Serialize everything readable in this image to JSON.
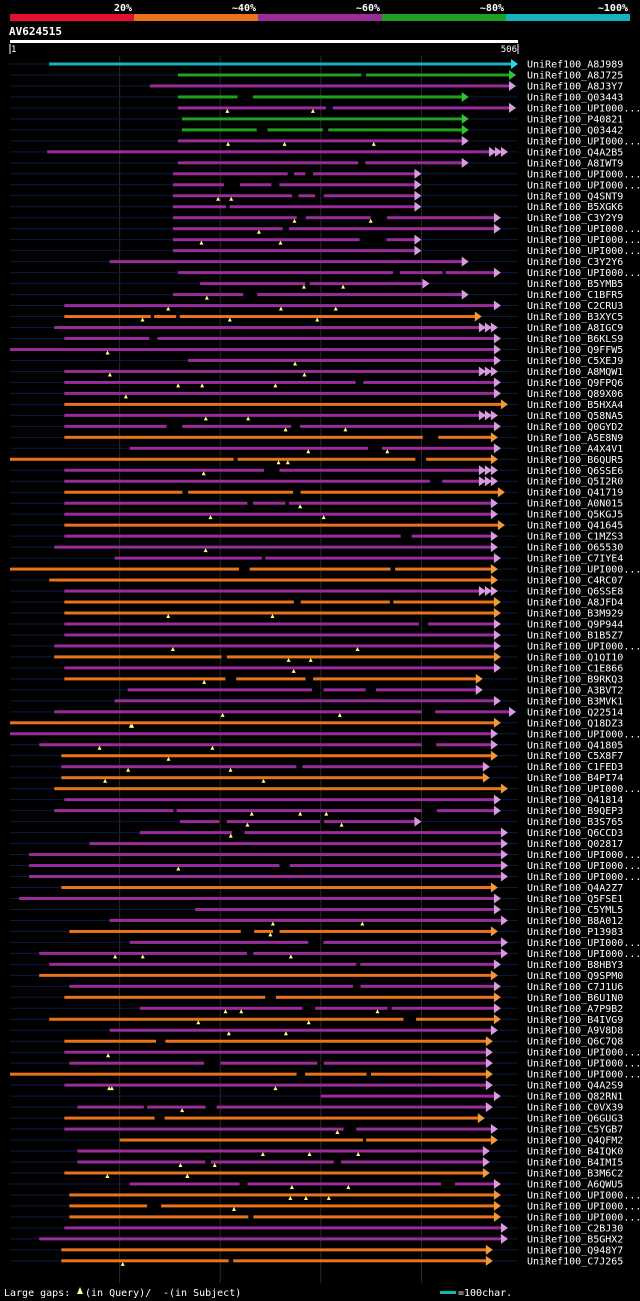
{
  "legend": {
    "segments": [
      {
        "label": "20%",
        "color": "#e0112e"
      },
      {
        "label": "~40%",
        "color": "#e8731a"
      },
      {
        "label": "~60%",
        "color": "#9a2b9a"
      },
      {
        "label": "~80%",
        "color": "#1ea11e"
      },
      {
        "label": "~100%",
        "color": "#14b3bd"
      }
    ]
  },
  "query": {
    "id": "AV624515",
    "start": "1",
    "end": "506",
    "length": 506
  },
  "footer": {
    "gaps_label": "Large gaps:",
    "in_query": "(in Query)/",
    "dash": "-",
    "in_subject": " (in Subject)",
    "scale_label": "=100char."
  },
  "hits": [
    {
      "id": "UniRef100_A8J989",
      "s": 40,
      "e": 506,
      "c": "cyan",
      "r": false
    },
    {
      "id": "UniRef100_A8J725",
      "s": 168,
      "e": 504,
      "c": "green",
      "r": false
    },
    {
      "id": "UniRef100_A8J3Y7",
      "s": 140,
      "e": 504,
      "c": "magenta",
      "r": false
    },
    {
      "id": "UniRef100_Q03443",
      "s": 168,
      "e": 457,
      "c": "green",
      "r": false
    },
    {
      "id": "UniRef100_UPI000...",
      "s": 168,
      "e": 504,
      "c": "magenta",
      "r": false
    },
    {
      "id": "UniRef100_P40821",
      "s": 172,
      "e": 457,
      "c": "green",
      "r": false
    },
    {
      "id": "UniRef100_Q03442",
      "s": 172,
      "e": 457,
      "c": "green",
      "r": false
    },
    {
      "id": "UniRef100_UPI000...",
      "s": 168,
      "e": 457,
      "c": "magenta",
      "r": false
    },
    {
      "id": "UniRef100_Q4A2B5",
      "s": 38,
      "e": 496,
      "c": "magenta",
      "r": true
    },
    {
      "id": "UniRef100_A8IWT9",
      "s": 168,
      "e": 457,
      "c": "magenta",
      "r": false
    },
    {
      "id": "UniRef100_UPI000...",
      "s": 163,
      "e": 410,
      "c": "magenta",
      "r": false
    },
    {
      "id": "UniRef100_UPI000...",
      "s": 163,
      "e": 410,
      "c": "magenta",
      "r": false
    },
    {
      "id": "UniRef100_Q4SNT9",
      "s": 163,
      "e": 410,
      "c": "magenta",
      "r": false
    },
    {
      "id": "UniRef100_B5XGK6",
      "s": 163,
      "e": 410,
      "c": "magenta",
      "r": false
    },
    {
      "id": "UniRef100_C3Y2Y9",
      "s": 163,
      "e": 489,
      "c": "magenta",
      "r": false
    },
    {
      "id": "UniRef100_UPI000...",
      "s": 163,
      "e": 489,
      "c": "magenta",
      "r": false
    },
    {
      "id": "UniRef100_UPI000...",
      "s": 163,
      "e": 410,
      "c": "magenta",
      "r": false
    },
    {
      "id": "UniRef100_UPI000...",
      "s": 163,
      "e": 410,
      "c": "magenta",
      "r": false
    },
    {
      "id": "UniRef100_C3Y2Y6",
      "s": 100,
      "e": 457,
      "c": "magenta",
      "r": false
    },
    {
      "id": "UniRef100_UPI000...",
      "s": 168,
      "e": 489,
      "c": "magenta",
      "r": false
    },
    {
      "id": "UniRef100_B5YMB5",
      "s": 190,
      "e": 418,
      "c": "magenta",
      "r": false
    },
    {
      "id": "UniRef100_C1BFR5",
      "s": 163,
      "e": 457,
      "c": "magenta",
      "r": false
    },
    {
      "id": "UniRef100_C2CRU3",
      "s": 55,
      "e": 489,
      "c": "magenta",
      "r": false
    },
    {
      "id": "UniRef100_B3XYC5",
      "s": 55,
      "e": 470,
      "c": "orange",
      "r": false
    },
    {
      "id": "UniRef100_A8IGC9",
      "s": 45,
      "e": 486,
      "c": "magenta",
      "r": true
    },
    {
      "id": "UniRef100_B6KLS9",
      "s": 55,
      "e": 489,
      "c": "magenta",
      "r": false
    },
    {
      "id": "UniRef100_Q9FFW5",
      "s": 1,
      "e": 489,
      "c": "magenta",
      "r": false
    },
    {
      "id": "UniRef100_C5XEJ9",
      "s": 178,
      "e": 489,
      "c": "magenta",
      "r": false
    },
    {
      "id": "UniRef100_A8MQW1",
      "s": 55,
      "e": 486,
      "c": "magenta",
      "r": true
    },
    {
      "id": "UniRef100_Q9FPQ6",
      "s": 55,
      "e": 489,
      "c": "magenta",
      "r": false
    },
    {
      "id": "UniRef100_Q89X06",
      "s": 55,
      "e": 489,
      "c": "magenta",
      "r": false
    },
    {
      "id": "UniRef100_B5HXA4",
      "s": 55,
      "e": 496,
      "c": "orange",
      "r": false
    },
    {
      "id": "UniRef100_Q58NA5",
      "s": 55,
      "e": 486,
      "c": "magenta",
      "r": true
    },
    {
      "id": "UniRef100_Q0GYD2",
      "s": 55,
      "e": 489,
      "c": "magenta",
      "r": false
    },
    {
      "id": "UniRef100_A5E8N9",
      "s": 55,
      "e": 486,
      "c": "orange",
      "r": false
    },
    {
      "id": "UniRef100_A4X4V1",
      "s": 120,
      "e": 489,
      "c": "magenta",
      "r": false
    },
    {
      "id": "UniRef100_B6QUR5",
      "s": 1,
      "e": 486,
      "c": "orange",
      "r": false
    },
    {
      "id": "UniRef100_Q6SSE6",
      "s": 55,
      "e": 486,
      "c": "magenta",
      "r": true
    },
    {
      "id": "UniRef100_Q5I2R0",
      "s": 55,
      "e": 486,
      "c": "magenta",
      "r": true
    },
    {
      "id": "UniRef100_Q41719",
      "s": 55,
      "e": 493,
      "c": "orange",
      "r": false
    },
    {
      "id": "UniRef100_A0N015",
      "s": 55,
      "e": 486,
      "c": "magenta",
      "r": false
    },
    {
      "id": "UniRef100_Q5KGJ5",
      "s": 55,
      "e": 486,
      "c": "magenta",
      "r": false
    },
    {
      "id": "UniRef100_Q41645",
      "s": 55,
      "e": 493,
      "c": "orange",
      "r": false
    },
    {
      "id": "UniRef100_C1MZS3",
      "s": 55,
      "e": 486,
      "c": "magenta",
      "r": false
    },
    {
      "id": "UniRef100_O65530",
      "s": 45,
      "e": 486,
      "c": "magenta",
      "r": false
    },
    {
      "id": "UniRef100_C7IYE4",
      "s": 105,
      "e": 489,
      "c": "magenta",
      "r": false
    },
    {
      "id": "UniRef100_UPI000...",
      "s": 1,
      "e": 486,
      "c": "orange",
      "r": false
    },
    {
      "id": "UniRef100_C4RC07",
      "s": 40,
      "e": 486,
      "c": "orange",
      "r": false
    },
    {
      "id": "UniRef100_Q6SSE8",
      "s": 55,
      "e": 486,
      "c": "magenta",
      "r": true
    },
    {
      "id": "UniRef100_A8JFD4",
      "s": 55,
      "e": 489,
      "c": "orange",
      "r": false
    },
    {
      "id": "UniRef100_B3M929",
      "s": 55,
      "e": 489,
      "c": "orange",
      "r": false
    },
    {
      "id": "UniRef100_Q9P944",
      "s": 55,
      "e": 489,
      "c": "magenta",
      "r": false
    },
    {
      "id": "UniRef100_B1B5Z7",
      "s": 55,
      "e": 489,
      "c": "magenta",
      "r": false
    },
    {
      "id": "UniRef100_UPI000...",
      "s": 45,
      "e": 489,
      "c": "magenta",
      "r": false
    },
    {
      "id": "UniRef100_Q1QI10",
      "s": 45,
      "e": 489,
      "c": "orange",
      "r": false
    },
    {
      "id": "UniRef100_C1E866",
      "s": 55,
      "e": 489,
      "c": "magenta",
      "r": false
    },
    {
      "id": "UniRef100_B9RKQ3",
      "s": 55,
      "e": 471,
      "c": "orange",
      "r": false
    },
    {
      "id": "UniRef100_A3BVT2",
      "s": 118,
      "e": 471,
      "c": "magenta",
      "r": false
    },
    {
      "id": "UniRef100_B3MVK1",
      "s": 105,
      "e": 489,
      "c": "magenta",
      "r": false
    },
    {
      "id": "UniRef100_Q22514",
      "s": 45,
      "e": 504,
      "c": "magenta",
      "r": false
    },
    {
      "id": "UniRef100_Q18DZ3",
      "s": 1,
      "e": 489,
      "c": "orange",
      "r": false
    },
    {
      "id": "UniRef100_UPI000...",
      "s": 1,
      "e": 486,
      "c": "magenta",
      "r": false
    },
    {
      "id": "UniRef100_Q41805",
      "s": 30,
      "e": 486,
      "c": "magenta",
      "r": false
    },
    {
      "id": "UniRef100_C5X8F7",
      "s": 52,
      "e": 486,
      "c": "orange",
      "r": false
    },
    {
      "id": "UniRef100_C1FED3",
      "s": 52,
      "e": 478,
      "c": "magenta",
      "r": false
    },
    {
      "id": "UniRef100_B4PI74",
      "s": 52,
      "e": 478,
      "c": "orange",
      "r": false
    },
    {
      "id": "UniRef100_UPI000...",
      "s": 45,
      "e": 496,
      "c": "orange",
      "r": false
    },
    {
      "id": "UniRef100_Q41814",
      "s": 55,
      "e": 489,
      "c": "magenta",
      "r": false
    },
    {
      "id": "UniRef100_B9QEP3",
      "s": 45,
      "e": 489,
      "c": "magenta",
      "r": false
    },
    {
      "id": "UniRef100_B3S765",
      "s": 170,
      "e": 410,
      "c": "magenta",
      "r": false
    },
    {
      "id": "UniRef100_Q6CCD3",
      "s": 130,
      "e": 496,
      "c": "magenta",
      "r": false
    },
    {
      "id": "UniRef100_Q02817",
      "s": 80,
      "e": 496,
      "c": "magenta",
      "r": false
    },
    {
      "id": "UniRef100_UPI000...",
      "s": 20,
      "e": 496,
      "c": "magenta",
      "r": false
    },
    {
      "id": "UniRef100_UPI000...",
      "s": 20,
      "e": 496,
      "c": "magenta",
      "r": false
    },
    {
      "id": "UniRef100_UPI000...",
      "s": 20,
      "e": 496,
      "c": "magenta",
      "r": false
    },
    {
      "id": "UniRef100_Q4A2Z7",
      "s": 52,
      "e": 486,
      "c": "orange",
      "r": false
    },
    {
      "id": "UniRef100_Q5FSE1",
      "s": 10,
      "e": 489,
      "c": "magenta",
      "r": false
    },
    {
      "id": "UniRef100_C5YML5",
      "s": 185,
      "e": 489,
      "c": "magenta",
      "r": false
    },
    {
      "id": "UniRef100_B8A012",
      "s": 100,
      "e": 496,
      "c": "magenta",
      "r": false
    },
    {
      "id": "UniRef100_P13983",
      "s": 60,
      "e": 486,
      "c": "orange",
      "r": false
    },
    {
      "id": "UniRef100_UPI000...",
      "s": 120,
      "e": 496,
      "c": "magenta",
      "r": false
    },
    {
      "id": "UniRef100_UPI000...",
      "s": 30,
      "e": 496,
      "c": "magenta",
      "r": false
    },
    {
      "id": "UniRef100_B8HBY3",
      "s": 40,
      "e": 489,
      "c": "magenta",
      "r": false
    },
    {
      "id": "UniRef100_Q9SPM0",
      "s": 30,
      "e": 486,
      "c": "orange",
      "r": false
    },
    {
      "id": "UniRef100_C7J1U6",
      "s": 60,
      "e": 489,
      "c": "magenta",
      "r": false
    },
    {
      "id": "UniRef100_B6U1N0",
      "s": 55,
      "e": 489,
      "c": "orange",
      "r": false
    },
    {
      "id": "UniRef100_A7P9B2",
      "s": 130,
      "e": 489,
      "c": "magenta",
      "r": false
    },
    {
      "id": "UniRef100_B4IVG9",
      "s": 40,
      "e": 489,
      "c": "orange",
      "r": false
    },
    {
      "id": "UniRef100_A9V8D8",
      "s": 100,
      "e": 486,
      "c": "magenta",
      "r": false
    },
    {
      "id": "UniRef100_Q6C7Q8",
      "s": 55,
      "e": 481,
      "c": "orange",
      "r": false
    },
    {
      "id": "UniRef100_UPI000...",
      "s": 55,
      "e": 481,
      "c": "magenta",
      "r": false
    },
    {
      "id": "UniRef100_UPI000...",
      "s": 60,
      "e": 481,
      "c": "magenta",
      "r": false
    },
    {
      "id": "UniRef100_UPI000...",
      "s": 1,
      "e": 481,
      "c": "orange",
      "r": false
    },
    {
      "id": "UniRef100_Q4A2S9",
      "s": 55,
      "e": 481,
      "c": "magenta",
      "r": false
    },
    {
      "id": "UniRef100_Q82RN1",
      "s": 310,
      "e": 489,
      "c": "magenta",
      "r": false
    },
    {
      "id": "UniRef100_C0VX39",
      "s": 68,
      "e": 481,
      "c": "magenta",
      "r": false
    },
    {
      "id": "UniRef100_Q6GUG3",
      "s": 55,
      "e": 473,
      "c": "orange",
      "r": false
    },
    {
      "id": "UniRef100_C5YGB7",
      "s": 55,
      "e": 486,
      "c": "magenta",
      "r": false
    },
    {
      "id": "UniRef100_Q4QFM2",
      "s": 110,
      "e": 486,
      "c": "orange",
      "r": false
    },
    {
      "id": "UniRef100_B4IQK0",
      "s": 68,
      "e": 478,
      "c": "magenta",
      "r": false
    },
    {
      "id": "UniRef100_B4IMI5",
      "s": 68,
      "e": 478,
      "c": "magenta",
      "r": false
    },
    {
      "id": "UniRef100_B3M6C2",
      "s": 55,
      "e": 478,
      "c": "orange",
      "r": false
    },
    {
      "id": "UniRef100_A6QWU5",
      "s": 120,
      "e": 489,
      "c": "magenta",
      "r": false
    },
    {
      "id": "UniRef100_UPI000...",
      "s": 60,
      "e": 489,
      "c": "orange",
      "r": false
    },
    {
      "id": "UniRef100_UPI000...",
      "s": 60,
      "e": 489,
      "c": "orange",
      "r": false
    },
    {
      "id": "UniRef100_UPI000...",
      "s": 60,
      "e": 489,
      "c": "orange",
      "r": false
    },
    {
      "id": "UniRef100_C2BJ30",
      "s": 55,
      "e": 496,
      "c": "magenta",
      "r": false
    },
    {
      "id": "UniRef100_B5GHX2",
      "s": 30,
      "e": 496,
      "c": "magenta",
      "r": false
    },
    {
      "id": "UniRef100_Q948Y7",
      "s": 52,
      "e": 481,
      "c": "orange",
      "r": false
    },
    {
      "id": "UniRef100_C7J265",
      "s": 52,
      "e": 481,
      "c": "orange",
      "r": false
    }
  ]
}
